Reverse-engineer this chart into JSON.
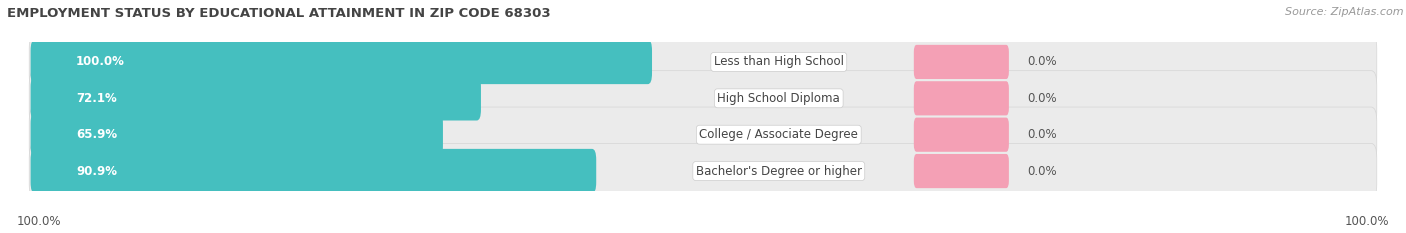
{
  "title": "EMPLOYMENT STATUS BY EDUCATIONAL ATTAINMENT IN ZIP CODE 68303",
  "source": "Source: ZipAtlas.com",
  "categories": [
    "Less than High School",
    "High School Diploma",
    "College / Associate Degree",
    "Bachelor's Degree or higher"
  ],
  "in_labor_force": [
    100.0,
    72.1,
    65.9,
    90.9
  ],
  "unemployed": [
    0.0,
    0.0,
    0.0,
    0.0
  ],
  "labor_force_color": "#45bfbf",
  "unemployed_color": "#f4a0b5",
  "row_bg_color": "#e8e8e8",
  "left_axis_label": "100.0%",
  "right_axis_label": "100.0%",
  "title_fontsize": 9.5,
  "cat_label_fontsize": 8.5,
  "bar_label_fontsize": 8.5,
  "legend_fontsize": 8.5,
  "source_fontsize": 8,
  "axis_label_fontsize": 8.5
}
